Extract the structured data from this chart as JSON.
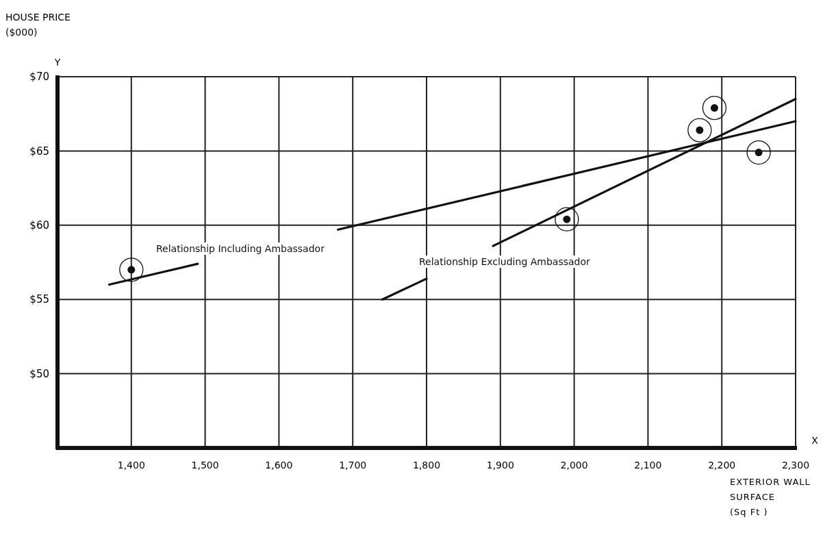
{
  "chart_data": {
    "type": "scatter",
    "xlabel": "EXTERIOR WALL\nSURFACE\n(Sq Ft )",
    "ylabel": "HOUSE PRICE\n($000)",
    "x": [
      1400,
      1990,
      2170,
      2190,
      2250
    ],
    "values": [
      57,
      60.4,
      66.4,
      67.9,
      64.9
    ],
    "color": "#111111",
    "marker": "circle",
    "series": [
      {
        "type": "line",
        "marker": "none",
        "color": "#111111",
        "x": [
          1370,
          1490,
          1585,
          1680,
          2300
        ],
        "values": [
          56,
          57.4,
          null,
          59.7,
          67
        ]
      },
      {
        "type": "line",
        "marker": "none",
        "color": "#111111",
        "x": [
          1740,
          1800,
          1845,
          1890,
          2300
        ],
        "values": [
          55,
          56.4,
          null,
          58.6,
          68.5
        ]
      }
    ],
    "annotations": [
      "Y",
      "X",
      "Relationship Including Ambassador",
      "Relationship Excluding Ambassador"
    ],
    "xlim": [
      1300,
      2300
    ],
    "xticks": [
      {
        "value": 1400,
        "label": "1,400"
      },
      {
        "value": 1500,
        "label": "1,500"
      },
      {
        "value": 1600,
        "label": "1,600"
      },
      {
        "value": 1700,
        "label": "1,700"
      },
      {
        "value": 1800,
        "label": "1,800"
      },
      {
        "value": 1900,
        "label": "1,900"
      },
      {
        "value": 2000,
        "label": "2,000"
      },
      {
        "value": 2100,
        "label": "2,100"
      },
      {
        "value": 2200,
        "label": "2,200"
      },
      {
        "value": 2300,
        "label": "2,300"
      }
    ],
    "ylim": [
      45,
      70
    ],
    "yticks": [
      {
        "value": 50,
        "label": "$50"
      },
      {
        "value": 55,
        "label": "$55"
      },
      {
        "value": 60,
        "label": "$60"
      },
      {
        "value": 65,
        "label": "$65"
      },
      {
        "value": 70,
        "label": "$70"
      }
    ],
    "grid": true,
    "line_style": "solid"
  }
}
